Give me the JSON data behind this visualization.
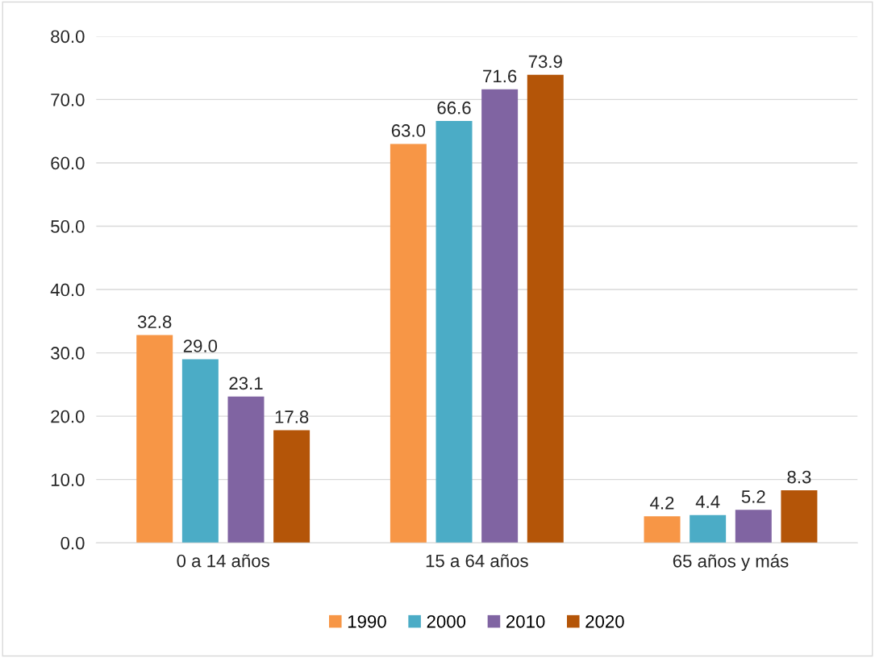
{
  "chart_data": {
    "type": "bar",
    "categories": [
      "0 a 14 años",
      "15 a 64 años",
      "65 años y más"
    ],
    "series": [
      {
        "name": "1990",
        "color": "#f79646",
        "values": [
          32.8,
          63.0,
          4.2
        ],
        "value_labels": [
          "32.8",
          "63.0",
          "4.2"
        ]
      },
      {
        "name": "2000",
        "color": "#4bacc6",
        "values": [
          29.0,
          66.6,
          4.4
        ],
        "value_labels": [
          "29.0",
          "66.6",
          "4.4"
        ]
      },
      {
        "name": "2010",
        "color": "#8064a2",
        "values": [
          23.1,
          71.6,
          5.2
        ],
        "value_labels": [
          "23.1",
          "71.6",
          "5.2"
        ]
      },
      {
        "name": "2020",
        "color": "#b45508",
        "values": [
          17.8,
          73.9,
          8.3
        ],
        "value_labels": [
          "17.8",
          "73.9",
          "8.3"
        ]
      }
    ],
    "ylim": [
      0,
      80
    ],
    "yticks": [
      {
        "value": 0,
        "label": "0.0"
      },
      {
        "value": 10,
        "label": "10.0"
      },
      {
        "value": 20,
        "label": "20.0"
      },
      {
        "value": 30,
        "label": "30.0"
      },
      {
        "value": 40,
        "label": "40.0"
      },
      {
        "value": 50,
        "label": "50.0"
      },
      {
        "value": 60,
        "label": "60.0"
      },
      {
        "value": 70,
        "label": "70.0"
      },
      {
        "value": 80,
        "label": "80.0"
      }
    ],
    "grid": "y",
    "legend": "bottom"
  }
}
